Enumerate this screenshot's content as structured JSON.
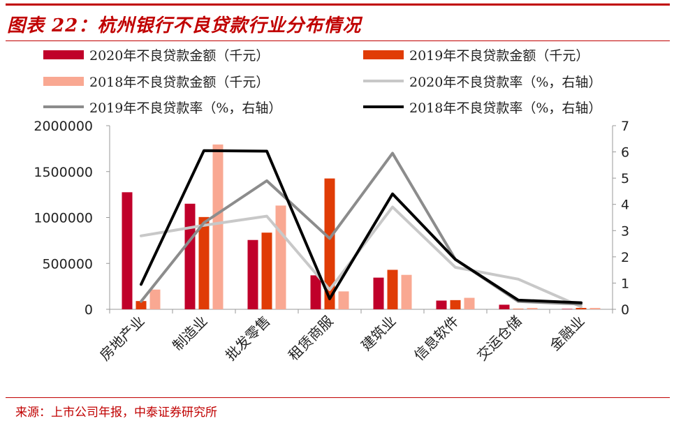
{
  "title": "图表 22：杭州银行不良贷款行业分布情况",
  "source": "来源：上市公司年报，中泰证券研究所",
  "legend": [
    {
      "label": "2020年不良贷款金额（千元）",
      "type": "bar",
      "color": "#c0002a"
    },
    {
      "label": "2019年不良贷款金额（千元）",
      "type": "bar",
      "color": "#e03c06"
    },
    {
      "label": "2018年不良贷款金额（千元）",
      "type": "bar",
      "color": "#f9a892"
    },
    {
      "label": "2020年不良贷款率（%，右轴）",
      "type": "line",
      "color": "#c8c8c8"
    },
    {
      "label": "2019年不良贷款率（%，右轴）",
      "type": "line",
      "color": "#8c8c8c"
    },
    {
      "label": "2018年不良贷款率（%，右轴）",
      "type": "line",
      "color": "#000000"
    }
  ],
  "chart_data": {
    "type": "bar",
    "categories": [
      "房地产业",
      "制造业",
      "批发零售",
      "租赁商服",
      "建筑业",
      "信息软件",
      "交运仓储",
      "金融业"
    ],
    "y_left": {
      "ylim": [
        0,
        2000000
      ],
      "ticks": [
        "0",
        "500000",
        "1000000",
        "1500000",
        "2000000"
      ]
    },
    "y_right": {
      "ylim": [
        0,
        7
      ],
      "ticks": [
        "0",
        "1",
        "2",
        "3",
        "4",
        "5",
        "6",
        "7"
      ]
    },
    "series": [
      {
        "name": "2020年不良贷款金额（千元）",
        "type": "bar",
        "axis": "left",
        "color": "#c0002a",
        "values": [
          1275000,
          1150000,
          755000,
          370000,
          345000,
          95000,
          50000,
          5000
        ]
      },
      {
        "name": "2019年不良贷款金额（千元）",
        "type": "bar",
        "axis": "left",
        "color": "#e03c06",
        "values": [
          90000,
          1005000,
          835000,
          1425000,
          430000,
          100000,
          5000,
          15000
        ]
      },
      {
        "name": "2018年不良贷款金额（千元）",
        "type": "bar",
        "axis": "left",
        "color": "#f9a892",
        "values": [
          215000,
          1795000,
          1130000,
          195000,
          375000,
          125000,
          15000,
          15000
        ]
      },
      {
        "name": "2020年不良贷款率（%，右轴）",
        "type": "line",
        "axis": "right",
        "color": "#c8c8c8",
        "values": [
          2.8,
          3.2,
          3.55,
          0.75,
          3.9,
          1.6,
          1.15,
          0.1
        ]
      },
      {
        "name": "2019年不良贷款率（%，右轴）",
        "type": "line",
        "axis": "right",
        "color": "#8c8c8c",
        "values": [
          0.3,
          3.3,
          4.9,
          2.7,
          5.95,
          1.9,
          0.3,
          0.2
        ]
      },
      {
        "name": "2018年不良贷款率（%，右轴）",
        "type": "line",
        "axis": "right",
        "color": "#000000",
        "values": [
          0.95,
          6.05,
          6.03,
          0.4,
          4.4,
          1.9,
          0.35,
          0.25
        ]
      }
    ]
  }
}
